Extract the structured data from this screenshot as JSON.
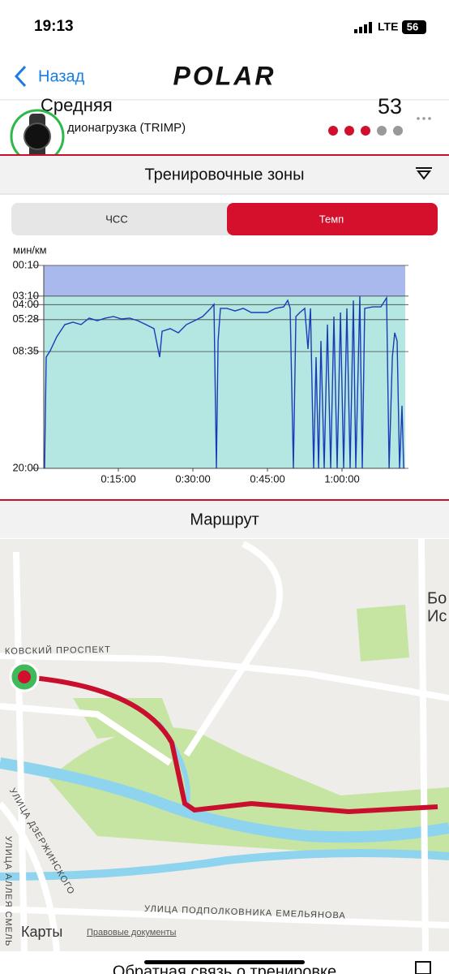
{
  "status": {
    "time": "19:13",
    "network": "LTE",
    "battery": "56"
  },
  "nav": {
    "back": "Назад",
    "logo": "POLAR"
  },
  "summary": {
    "title": "Средняя",
    "value": "53",
    "subtitle": "дионагрузка (TRIMP)"
  },
  "zones_section": {
    "title": "Тренировочные зоны",
    "tabs": [
      "ЧСС",
      "Темп"
    ]
  },
  "chart_data": {
    "type": "line",
    "ylabel": "мин/км",
    "x": [
      10,
      29,
      78,
      157,
      254,
      352,
      450,
      548,
      646,
      744,
      841,
      939,
      1037,
      1135,
      1233,
      1330,
      1399,
      1428,
      1526,
      1624,
      1722,
      1820,
      1917,
      2015,
      2054,
      2084,
      2104,
      2133,
      2211,
      2309,
      2407,
      2504,
      2602,
      2700,
      2798,
      2896,
      2945,
      2974,
      3013,
      3043,
      3091,
      3150,
      3189,
      3219,
      3258,
      3287,
      3317,
      3346,
      3385,
      3424,
      3463,
      3502,
      3541,
      3581,
      3620,
      3659,
      3698,
      3737,
      3766,
      3815,
      3845,
      3874,
      3972,
      4070,
      4138,
      4168,
      4207,
      4236,
      4265,
      4295,
      4324,
      4344
    ],
    "series": [
      {
        "color": "#1a3bb8",
        "values": [
          1200,
          548,
          510,
          429,
          357,
          343,
          357,
          319,
          334,
          319,
          310,
          324,
          319,
          334,
          357,
          381,
          548,
          396,
          381,
          405,
          357,
          334,
          310,
          262,
          238,
          1200,
          453,
          262,
          262,
          277,
          262,
          286,
          286,
          286,
          262,
          253,
          215,
          262,
          1200,
          310,
          286,
          262,
          500,
          262,
          1200,
          548,
          1200,
          453,
          1200,
          357,
          1200,
          310,
          1200,
          286,
          1200,
          262,
          1200,
          215,
          1200,
          191,
          1200,
          262,
          253,
          253,
          200,
          1200,
          548,
          405,
          453,
          1200,
          833,
          1200
        ]
      }
    ],
    "xlim": [
      0,
      4363
    ],
    "ylim": [
      1200,
      10
    ],
    "xticks": [
      {
        "value": 900,
        "label": "0:15:00"
      },
      {
        "value": 1800,
        "label": "0:30:00"
      },
      {
        "value": 2700,
        "label": "0:45:00"
      },
      {
        "value": 3600,
        "label": "1:00:00"
      }
    ],
    "yticks": [
      {
        "value": 10,
        "label": "00:10"
      },
      {
        "value": 190,
        "label": "03:10"
      },
      {
        "value": 240,
        "label": "04:00"
      },
      {
        "value": 328,
        "label": "05:28"
      },
      {
        "value": 515,
        "label": "08:35"
      },
      {
        "value": 1200,
        "label": "20:00"
      }
    ],
    "bands": [
      {
        "from": 10,
        "to": 190,
        "color": "#a9b9ee"
      },
      {
        "from": 190,
        "to": 1200,
        "color": "#b5e7e2"
      }
    ],
    "grid": true
  },
  "route_section": {
    "title": "Маршрут"
  },
  "map": {
    "labels": [
      "КОВСКИЙ ПРОСПЕКТ",
      "УЛИЦА ДЗЕРЖИНСКОГО",
      "УЛИЦА АЛЛЕЯ СМЕЛЬ",
      "УЛИЦА ПОДПОЛКОВНИКА ЕМЕЛЬЯНОВА",
      "Бо",
      "Ис"
    ],
    "brand": "Карты",
    "legal": "Правовые документы"
  },
  "footer": {
    "title": "Обратная связь о тренировке"
  }
}
